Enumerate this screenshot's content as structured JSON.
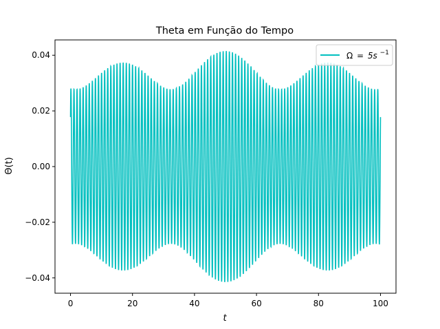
{
  "chart_data": {
    "type": "line",
    "title": "Theta em Função do Tempo",
    "xlabel": "t",
    "ylabel": "Θ(t)",
    "xlim": [
      -5,
      105
    ],
    "ylim": [
      -0.0455,
      0.0455
    ],
    "x_ticks": [
      0,
      20,
      40,
      60,
      80,
      100
    ],
    "x_tick_labels": [
      "0",
      "20",
      "40",
      "60",
      "80",
      "100"
    ],
    "y_ticks": [
      -0.04,
      -0.02,
      0.0,
      0.02,
      0.04
    ],
    "y_tick_labels": [
      "−0.04",
      "−0.02",
      "0.00",
      "0.02",
      "0.04"
    ],
    "grid": false,
    "legend_position": "top-right",
    "series": [
      {
        "name": "Ω = 5s⁻¹",
        "legend_symbol": "Ω",
        "legend_equals": "=",
        "legend_base": "5s",
        "legend_exp": "−1",
        "color": "#00bfbf",
        "x_range": [
          0,
          100
        ],
        "oscillation_count": 100,
        "envelope_amplitude": 0.0415,
        "beat_period": 66,
        "description_of_shape": "beat: fast oscillation inside a slowly varying envelope"
      }
    ]
  }
}
